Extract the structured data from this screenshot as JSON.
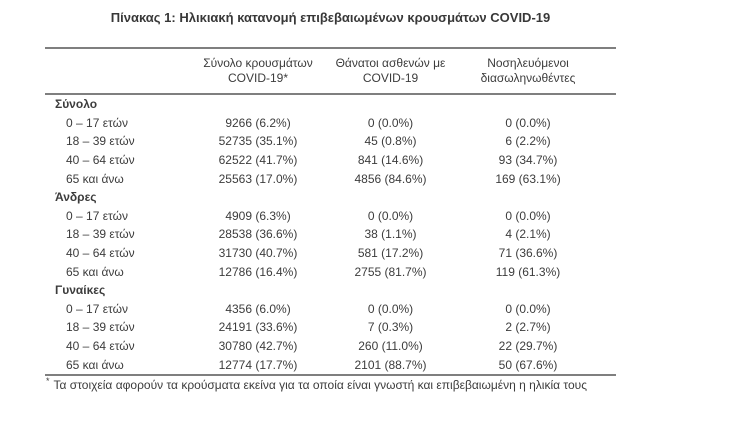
{
  "title": "Πίνακας 1: Ηλικιακή κατανομή επιβεβαιωμένων κρουσμάτων COVID-19",
  "table": {
    "columns": [
      {
        "line1": "Σύνολο κρουσμάτων",
        "line2": "COVID-19*"
      },
      {
        "line1": "Θάνατοι ασθενών με",
        "line2": "COVID-19"
      },
      {
        "line1": "Νοσηλευόμενοι",
        "line2": "διασωληνωθέντες"
      }
    ],
    "sections": [
      {
        "label": "Σύνολο",
        "rows": [
          {
            "label": "0 – 17 ετών",
            "cases": "9266 (6.2%)",
            "deaths": "0 (0.0%)",
            "intubated": "0 (0.0%)"
          },
          {
            "label": "18 – 39 ετών",
            "cases": "52735 (35.1%)",
            "deaths": "45 (0.8%)",
            "intubated": "6 (2.2%)"
          },
          {
            "label": "40 – 64 ετών",
            "cases": "62522 (41.7%)",
            "deaths": "841 (14.6%)",
            "intubated": "93 (34.7%)"
          },
          {
            "label": "65 και άνω",
            "cases": "25563 (17.0%)",
            "deaths": "4856 (84.6%)",
            "intubated": "169 (63.1%)"
          }
        ]
      },
      {
        "label": "Άνδρες",
        "rows": [
          {
            "label": "0 – 17 ετών",
            "cases": "4909 (6.3%)",
            "deaths": "0 (0.0%)",
            "intubated": "0 (0.0%)"
          },
          {
            "label": "18 – 39 ετών",
            "cases": "28538 (36.6%)",
            "deaths": "38 (1.1%)",
            "intubated": "4 (2.1%)"
          },
          {
            "label": "40 – 64 ετών",
            "cases": "31730 (40.7%)",
            "deaths": "581 (17.2%)",
            "intubated": "71 (36.6%)"
          },
          {
            "label": "65 και άνω",
            "cases": "12786 (16.4%)",
            "deaths": "2755 (81.7%)",
            "intubated": "119 (61.3%)"
          }
        ]
      },
      {
        "label": "Γυναίκες",
        "rows": [
          {
            "label": "0 – 17 ετών",
            "cases": "4356 (6.0%)",
            "deaths": "0 (0.0%)",
            "intubated": "0 (0.0%)"
          },
          {
            "label": "18 – 39 ετών",
            "cases": "24191 (33.6%)",
            "deaths": "7 (0.3%)",
            "intubated": "2 (2.7%)"
          },
          {
            "label": "40 – 64 ετών",
            "cases": "30780 (42.7%)",
            "deaths": "260 (11.0%)",
            "intubated": "22 (29.7%)"
          },
          {
            "label": "65 και άνω",
            "cases": "12774 (17.7%)",
            "deaths": "2101 (88.7%)",
            "intubated": "50 (67.6%)"
          }
        ]
      }
    ]
  },
  "footnote": {
    "marker": "*",
    "text": "Τα στοιχεία αφορούν τα κρούσματα εκείνα για τα οποία είναι γνωστή και επιβεβαιωμένη η ηλικία τους"
  },
  "colors": {
    "text": "#3c3c3c",
    "rule": "#7f7f7f",
    "background": "#ffffff"
  }
}
